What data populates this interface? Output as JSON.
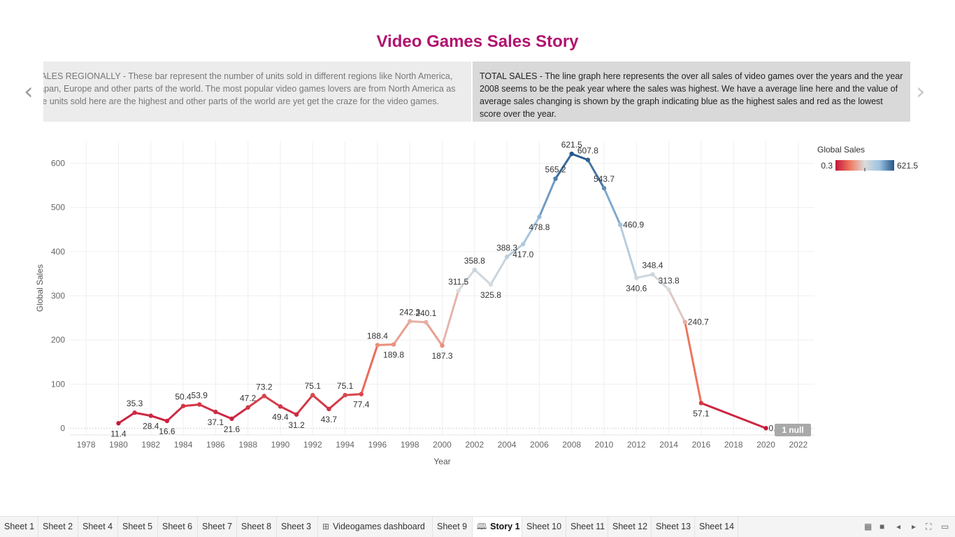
{
  "story": {
    "title": "Video Games Sales Story",
    "prev_point_text": "SALES REGIONALLY - These bar represent the number of units sold in different regions like North America, Japan, Europe and other parts of the world.  The most popular video games lovers are from North America as the units sold here are the highest and other parts of the world are yet get the craze for the video games.",
    "active_point_text": "TOTAL SALES - The line graph here represents the over all sales of video games over the years and the year 2008 seems to be the peak year where the sales was highest.  We have a average line here and the value of average sales changing is shown by the graph indicating blue as the highest sales and red as the lowest score over the year.",
    "prev_arrow": "‹",
    "next_arrow": "›"
  },
  "chart_data": {
    "type": "line",
    "xlabel": "Year",
    "ylabel": "Global Sales",
    "xlim": [
      1977,
      2023
    ],
    "ylim": [
      -15,
      650
    ],
    "x_ticks": [
      1978,
      1980,
      1982,
      1984,
      1986,
      1988,
      1990,
      1992,
      1994,
      1996,
      1998,
      2000,
      2002,
      2004,
      2006,
      2008,
      2010,
      2012,
      2014,
      2016,
      2018,
      2020,
      2022
    ],
    "y_ticks": [
      0,
      100,
      200,
      300,
      400,
      500,
      600
    ],
    "grid": true,
    "x": [
      1980,
      1981,
      1982,
      1983,
      1984,
      1985,
      1986,
      1987,
      1988,
      1989,
      1990,
      1991,
      1992,
      1993,
      1994,
      1995,
      1996,
      1997,
      1998,
      1999,
      2000,
      2001,
      2002,
      2003,
      2004,
      2005,
      2006,
      2007,
      2008,
      2009,
      2010,
      2011,
      2012,
      2013,
      2014,
      2015,
      2016,
      2020
    ],
    "y": [
      11.4,
      35.3,
      28.4,
      16.6,
      50.4,
      53.9,
      37.1,
      21.6,
      47.2,
      73.2,
      49.4,
      31.2,
      75.1,
      43.7,
      75.1,
      77.4,
      188.4,
      189.8,
      242.3,
      240.1,
      187.3,
      311.5,
      358.8,
      325.8,
      388.3,
      417.0,
      478.8,
      565.2,
      621.5,
      607.8,
      543.7,
      460.9,
      340.6,
      348.4,
      313.8,
      240.7,
      57.1,
      0.3
    ],
    "labels": [
      "11.4",
      "35.3",
      "28.4",
      "16.6",
      "50.4",
      "53.9",
      "37.1",
      "21.6",
      "47.2",
      "73.2",
      "49.4",
      "31.2",
      "75.1",
      "43.7",
      "75.1",
      "77.4",
      "188.4",
      "189.8",
      "242.3",
      "240.1",
      "187.3",
      "311.5",
      "358.8",
      "325.8",
      "388.3",
      "417.0",
      "478.8",
      "565.2",
      "621.5",
      "607.8",
      "543.7",
      "460.9",
      "340.6",
      "348.4",
      "313.8",
      "240.7",
      "57.1",
      "0.3"
    ],
    "label_pos": [
      "below",
      "above",
      "below",
      "below",
      "above",
      "above",
      "below",
      "below",
      "above",
      "above",
      "below",
      "below",
      "above",
      "below",
      "above",
      "below",
      "above",
      "below",
      "above",
      "above",
      "below",
      "above",
      "above",
      "below",
      "above",
      "below",
      "below",
      "above",
      "above",
      "above",
      "above",
      "right",
      "below",
      "above",
      "above",
      "right",
      "below",
      "right"
    ],
    "label_hidden": [
      false,
      false,
      false,
      false,
      false,
      false,
      false,
      false,
      false,
      false,
      false,
      false,
      false,
      false,
      false,
      false,
      false,
      false,
      false,
      false,
      false,
      false,
      false,
      false,
      false,
      false,
      false,
      false,
      false,
      false,
      false,
      false,
      false,
      false,
      false,
      false,
      false,
      true
    ],
    "legend": {
      "title": "Global Sales",
      "min_label": "0.3",
      "max_label": "621.5",
      "min": 0.3,
      "max": 621.5,
      "midpoint": 311.0,
      "position": "top-right"
    },
    "colors": {
      "low": "#c4153a",
      "low_mid": "#ef7a60",
      "mid": "#dcdcdc",
      "high_mid": "#9dc2e0",
      "high": "#24568a"
    },
    "null_badge": "1 null"
  },
  "tabs": [
    {
      "label": "Sheet 1",
      "icon": ""
    },
    {
      "label": "Sheet 2",
      "icon": ""
    },
    {
      "label": "Sheet 4",
      "icon": ""
    },
    {
      "label": "Sheet 5",
      "icon": ""
    },
    {
      "label": "Sheet 6",
      "icon": ""
    },
    {
      "label": "Sheet 7",
      "icon": ""
    },
    {
      "label": "Sheet 8",
      "icon": ""
    },
    {
      "label": "Sheet 3",
      "icon": ""
    },
    {
      "label": "Videogames dashboard",
      "icon": "⊞"
    },
    {
      "label": "Sheet 9",
      "icon": ""
    },
    {
      "label": "Story 1",
      "icon": "🕮"
    },
    {
      "label": "Sheet 10",
      "icon": ""
    },
    {
      "label": "Sheet 11",
      "icon": ""
    },
    {
      "label": "Sheet 12",
      "icon": ""
    },
    {
      "label": "Sheet 13",
      "icon": ""
    },
    {
      "label": "Sheet 14",
      "icon": ""
    }
  ],
  "active_tab": "Story 1",
  "controls": {
    "sheet_sorter_icon": "▦",
    "filmstrip_icon": "■",
    "prev_icon": "◂",
    "next_icon": "▸",
    "fullscreen_icon": "⛶",
    "presentation_icon": "▭"
  }
}
